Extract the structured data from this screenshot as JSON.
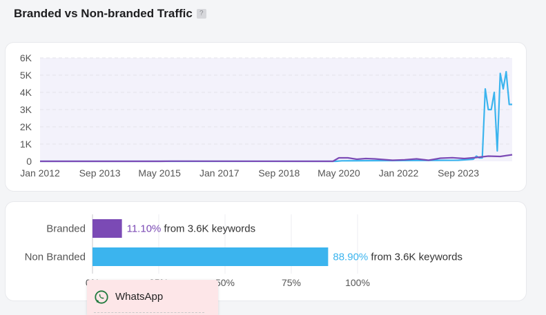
{
  "header": {
    "title": "Branded vs Non-branded Traffic",
    "help_label": "?"
  },
  "colors": {
    "branded": "#7b4ab5",
    "non_branded": "#3bb4ee",
    "grid": "#e3e3e8",
    "plot_bg": "#f3f2fb"
  },
  "chart_data": [
    {
      "type": "line",
      "x_ticks": [
        "Jan 2012",
        "Sep 2013",
        "May 2015",
        "Jan 2017",
        "Sep 2018",
        "May 2020",
        "Jan 2022",
        "Sep 2023"
      ],
      "y_ticks": [
        "0",
        "1K",
        "2K",
        "3K",
        "4K",
        "5K",
        "6K"
      ],
      "ylim": [
        0,
        6000
      ],
      "xlim": [
        "2012-01",
        "2025-03"
      ],
      "grid": true,
      "series": [
        {
          "color": "#3bb4ee",
          "x": [
            "2012-01",
            "2020-04",
            "2020-06",
            "2023-09",
            "2024-02",
            "2024-03",
            "2024-04",
            "2024-05",
            "2024-06",
            "2024-07",
            "2024-08",
            "2024-09",
            "2024-10",
            "2024-11",
            "2024-12",
            "2025-01",
            "2025-02",
            "2025-03"
          ],
          "y": [
            0,
            0,
            30,
            60,
            120,
            300,
            200,
            200,
            4200,
            3000,
            3000,
            4000,
            600,
            5100,
            4200,
            5200,
            3300,
            3300
          ]
        },
        {
          "color": "#7b4ab5",
          "x": [
            "2012-01",
            "2015-05",
            "2015-09",
            "2020-03",
            "2020-05",
            "2020-08",
            "2020-11",
            "2021-02",
            "2021-05",
            "2021-08",
            "2021-11",
            "2022-03",
            "2022-07",
            "2022-11",
            "2023-03",
            "2023-07",
            "2023-11",
            "2024-03",
            "2024-07",
            "2024-11",
            "2025-03"
          ],
          "y": [
            0,
            0,
            10,
            0,
            200,
            200,
            120,
            160,
            140,
            100,
            60,
            90,
            140,
            60,
            180,
            210,
            160,
            220,
            300,
            280,
            380
          ]
        }
      ]
    },
    {
      "type": "bar",
      "orientation": "horizontal",
      "categories": [
        "Branded",
        "Non Branded"
      ],
      "values": [
        11.1,
        88.9
      ],
      "value_labels": [
        "11.10%",
        "88.90%"
      ],
      "annotations": [
        "from 3.6K keywords",
        "from 3.6K keywords"
      ],
      "x_ticks": [
        "0%",
        "25%",
        "50%",
        "75%",
        "100%"
      ],
      "xlim": [
        0,
        100
      ]
    }
  ],
  "overlay": {
    "whatsapp_label": "WhatsApp"
  }
}
